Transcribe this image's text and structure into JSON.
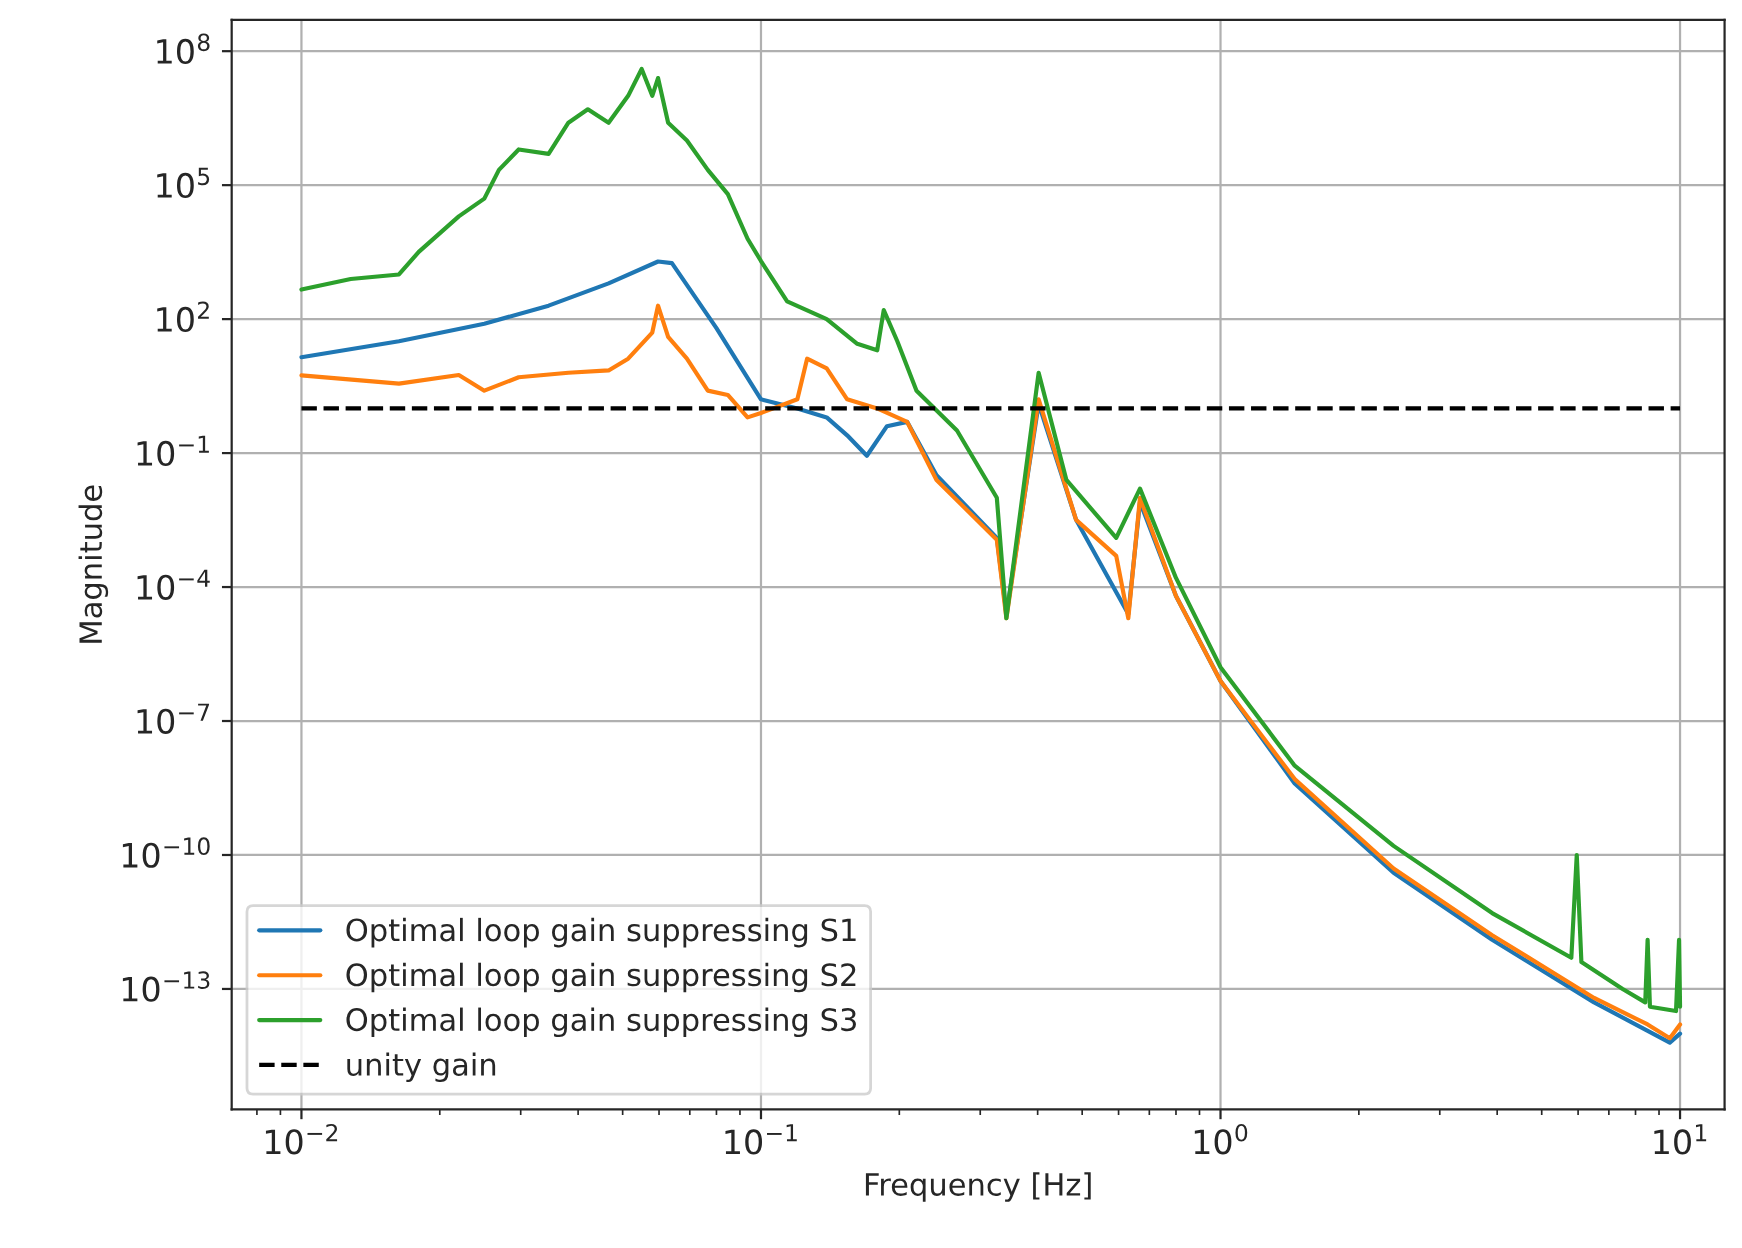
{
  "chart_data": {
    "type": "line",
    "xlabel": "Frequency [Hz]",
    "ylabel": "Magnitude",
    "log": "xy",
    "grid": true,
    "legend": "bottom left",
    "xlim": [
      0.00705,
      12.5
    ],
    "ylim": [
      2e-16,
      500000000.0
    ],
    "xticks": [
      {
        "value": 0.01,
        "label": "10$^{−2}$"
      },
      {
        "value": 0.1,
        "label": "10$^{−1}$"
      },
      {
        "value": 1,
        "label": "10$^{0}$"
      },
      {
        "value": 10,
        "label": "10$^{1}$"
      }
    ],
    "yticks": [
      {
        "value": 1e-13,
        "label": "10$^{−13}$"
      },
      {
        "value": 1e-10,
        "label": "10$^{−10}$"
      },
      {
        "value": 1e-07,
        "label": "10$^{−7}$"
      },
      {
        "value": 0.0001,
        "label": "10$^{−4}$"
      },
      {
        "value": 0.1,
        "label": "10$^{−1}$"
      },
      {
        "value": 100,
        "label": "10$^{2}$"
      },
      {
        "value": 100000,
        "label": "10$^{5}$"
      },
      {
        "value": 100000000,
        "label": "10$^{8}$"
      }
    ],
    "series": [
      {
        "name": "Optimal loop gain suppressing S1",
        "color": "#1f77b4",
        "line_style": "solid",
        "x": [
          0.01,
          0.0163,
          0.025,
          0.0345,
          0.0466,
          0.0597,
          0.064,
          0.08,
          0.1,
          0.12,
          0.139,
          0.154,
          0.17,
          0.188,
          0.208,
          0.241,
          0.326,
          0.342,
          0.402,
          0.485,
          0.63,
          0.668,
          0.8,
          1.0,
          1.45,
          2.38,
          3.9,
          6.5,
          9.5,
          10
        ],
        "values": [
          14,
          32,
          79,
          200,
          630,
          1950,
          1800,
          63,
          1.6,
          1.0,
          0.63,
          0.25,
          0.087,
          0.4,
          0.5,
          0.032,
          0.00126,
          2.5e-05,
          1.26,
          0.0032,
          2.5e-05,
          0.008,
          6.3e-05,
          7.9e-07,
          4e-09,
          4e-11,
          1.26e-12,
          5e-14,
          6.3e-15,
          1e-14
        ]
      },
      {
        "name": "Optimal loop gain suppressing S2",
        "color": "#ff7f0e",
        "line_style": "solid",
        "x": [
          0.01,
          0.0163,
          0.022,
          0.025,
          0.0297,
          0.0381,
          0.0466,
          0.0514,
          0.058,
          0.0597,
          0.0628,
          0.069,
          0.0766,
          0.0847,
          0.0935,
          0.1,
          0.12,
          0.126,
          0.139,
          0.154,
          0.179,
          0.208,
          0.241,
          0.326,
          0.342,
          0.402,
          0.485,
          0.593,
          0.63,
          0.668,
          0.8,
          1.0,
          1.45,
          2.38,
          3.9,
          6.5,
          8.5,
          9.5,
          10
        ],
        "values": [
          5.5,
          3.6,
          5.6,
          2.5,
          5.0,
          6.3,
          7.1,
          13,
          50,
          200,
          40,
          13,
          2.5,
          2.0,
          0.63,
          0.79,
          1.6,
          13,
          7.9,
          1.6,
          1.0,
          0.5,
          0.025,
          0.00115,
          2e-05,
          1.6,
          0.0032,
          0.0005,
          2e-05,
          0.01,
          6.3e-05,
          7.9e-07,
          5e-09,
          5e-11,
          1.6e-12,
          6.3e-14,
          1.6e-14,
          7.9e-15,
          1.6e-14
        ]
      },
      {
        "name": "Optimal loop gain suppressing S3",
        "color": "#2ca02c",
        "line_style": "solid",
        "x": [
          0.01,
          0.0128,
          0.0163,
          0.018,
          0.022,
          0.025,
          0.0269,
          0.0297,
          0.0345,
          0.0381,
          0.042,
          0.0466,
          0.0514,
          0.055,
          0.058,
          0.0597,
          0.0628,
          0.069,
          0.0766,
          0.0847,
          0.0935,
          0.1,
          0.114,
          0.139,
          0.162,
          0.179,
          0.185,
          0.198,
          0.218,
          0.267,
          0.326,
          0.342,
          0.402,
          0.462,
          0.593,
          0.668,
          0.8,
          1.0,
          1.45,
          2.38,
          3.9,
          5.8,
          5.96,
          6.1,
          7.5,
          8.4,
          8.5,
          8.6,
          9.8,
          9.95,
          10
        ],
        "values": [
          460,
          790,
          1000,
          3200,
          20000,
          50000,
          220000,
          630000,
          500000,
          2500000,
          5000000,
          2500000,
          10000000,
          40000000,
          10000000,
          25000000,
          2500000,
          1000000,
          220000,
          63000,
          6300,
          2000,
          250,
          100,
          28,
          20,
          160,
          32,
          2.5,
          0.32,
          0.01,
          2e-05,
          6.3,
          0.025,
          0.00126,
          0.016,
          0.00016,
          1.6e-06,
          1e-08,
          1.6e-10,
          5e-12,
          5e-13,
          1e-10,
          4e-13,
          1e-13,
          5e-14,
          1.26e-12,
          4e-14,
          3.2e-14,
          1.26e-12,
          4e-14
        ]
      },
      {
        "name": "unity gain",
        "color": "#000000",
        "line_style": "dashed",
        "x": [
          0.01,
          10
        ],
        "values": [
          1,
          1
        ]
      }
    ]
  }
}
